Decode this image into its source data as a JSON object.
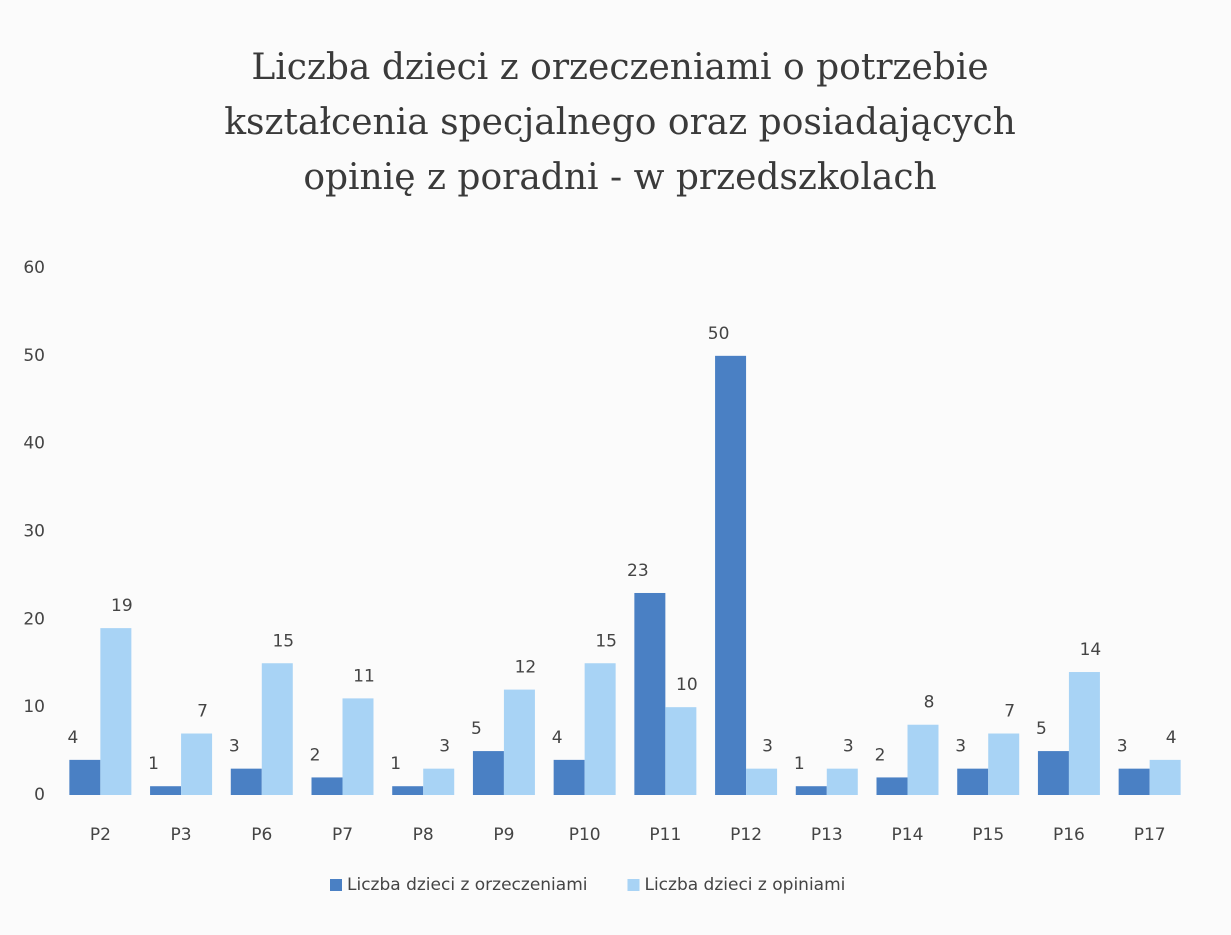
{
  "chart_data": {
    "type": "bar",
    "title": [
      "Liczba dzieci z orzeczeniami o potrzebie",
      "kształcenia specjalnego oraz posiadających",
      "opinię z poradni - w przedszkolach"
    ],
    "categories": [
      "P2",
      "P3",
      "P6",
      "P7",
      "P8",
      "P9",
      "P10",
      "P11",
      "P12",
      "P13",
      "P14",
      "P15",
      "P16",
      "P17"
    ],
    "series": [
      {
        "name": "Liczba dzieci z orzeczeniami",
        "color": "#4a80c4",
        "values": [
          4,
          1,
          3,
          2,
          1,
          5,
          4,
          23,
          50,
          1,
          2,
          3,
          5,
          3
        ]
      },
      {
        "name": "Liczba dzieci z opiniami",
        "color": "#a8d3f5",
        "values": [
          19,
          7,
          15,
          11,
          3,
          12,
          15,
          10,
          3,
          3,
          8,
          7,
          14,
          4
        ]
      }
    ],
    "ylim": [
      0,
      60
    ],
    "yticks": [
      0,
      10,
      20,
      30,
      40,
      50,
      60
    ],
    "grid": false,
    "legend": "bottom"
  }
}
